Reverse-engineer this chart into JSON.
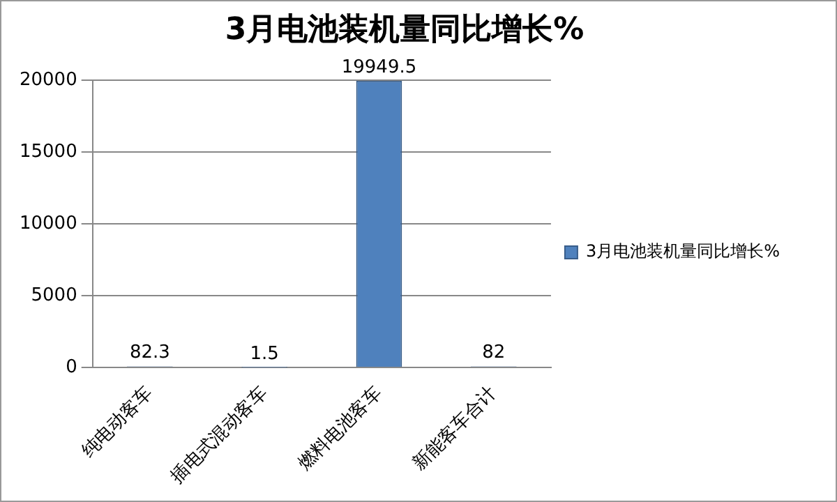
{
  "chart_data": {
    "type": "bar",
    "title": "3月电池装机量同比增长%",
    "categories": [
      "纯电动客车",
      "插电式混动客车",
      "燃料电池客车",
      "新能客车合计"
    ],
    "series": [
      {
        "name": "3月电池装机量同比增长%",
        "color": "#4f81bd",
        "values": [
          82.3,
          1.5,
          19949.5,
          82
        ]
      }
    ],
    "ylim": [
      0,
      20000
    ],
    "yticks": [
      0,
      5000,
      10000,
      15000,
      20000
    ],
    "grid": "y",
    "legend": "right",
    "data_labels": true
  }
}
